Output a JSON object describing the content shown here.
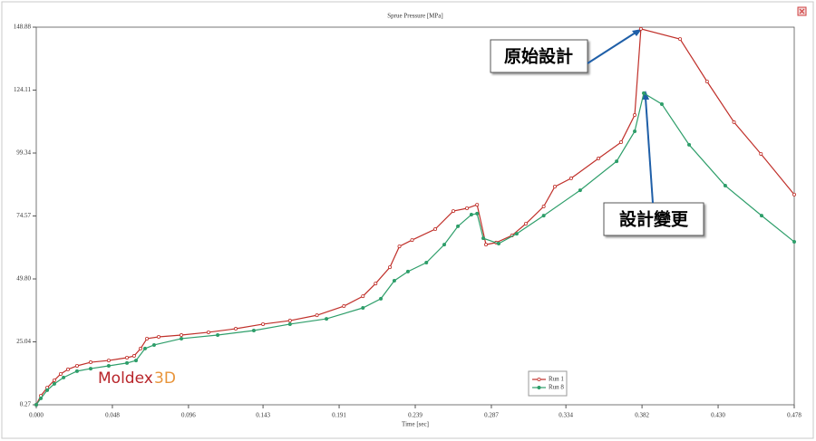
{
  "chart_data": {
    "type": "line",
    "title": "Sprue Pressure [MPa]",
    "x_label": "Time [sec]",
    "xlim": [
      0,
      0.478
    ],
    "ylim": [
      0.27,
      148.88
    ],
    "xticks": [
      {
        "value": 0,
        "label": "0.000"
      },
      0.048,
      0.096,
      0.143,
      0.191,
      0.239,
      0.287,
      0.334,
      0.382,
      {
        "value": 0.43,
        "label": "0.430"
      },
      0.478
    ],
    "yticks": [
      0.27,
      25.04,
      {
        "value": 49.8,
        "label": "49.80"
      },
      74.57,
      99.34,
      124.11,
      148.88
    ],
    "series": [
      {
        "name": "Run 1",
        "color": "#c0302a",
        "x": [
          0,
          0.0029,
          0.0069,
          0.0114,
          0.0154,
          0.02,
          0.0257,
          0.0343,
          0.0457,
          0.0572,
          0.0617,
          0.0658,
          0.0698,
          0.0772,
          0.0915,
          0.1086,
          0.1258,
          0.143,
          0.16,
          0.177,
          0.194,
          0.206,
          0.214,
          0.223,
          0.229,
          0.237,
          0.2516,
          0.263,
          0.2716,
          0.278,
          0.2836,
          0.29,
          0.3,
          0.3087,
          0.32,
          0.327,
          0.3373,
          0.3545,
          0.3688,
          0.3774,
          0.3813,
          0.406,
          0.423,
          0.44,
          0.457,
          0.478
        ],
        "values": [
          0.27,
          3.83,
          7.0,
          9.9,
          12.4,
          14.2,
          15.6,
          17.0,
          17.7,
          18.8,
          19.5,
          22.4,
          26.3,
          27.0,
          27.7,
          28.8,
          30.2,
          32.0,
          33.4,
          35.5,
          39.1,
          43.0,
          48.0,
          54.4,
          62.6,
          65.1,
          69.4,
          76.5,
          77.6,
          79.0,
          63.3,
          64.1,
          66.9,
          71.5,
          78.3,
          86.1,
          89.4,
          97.2,
          103.6,
          114.3,
          148.2,
          144.2,
          127.5,
          111.5,
          99.0,
          83.0
        ]
      },
      {
        "name": "Run 8",
        "color": "#2e9e6a",
        "x": [
          0,
          0.0029,
          0.0069,
          0.0114,
          0.0172,
          0.0257,
          0.0343,
          0.0457,
          0.0572,
          0.0629,
          0.0686,
          0.0743,
          0.0915,
          0.1144,
          0.1372,
          0.16,
          0.183,
          0.206,
          0.2173,
          0.2258,
          0.2344,
          0.246,
          0.2573,
          0.2659,
          0.2744,
          0.278,
          0.2819,
          0.2916,
          0.303,
          0.32,
          0.343,
          0.366,
          0.3774,
          0.3831,
          0.3945,
          0.4117,
          0.4345,
          0.4574,
          0.478
        ],
        "values": [
          0.27,
          2.8,
          6.0,
          8.5,
          11.0,
          13.5,
          14.5,
          15.6,
          16.7,
          17.7,
          22.4,
          23.8,
          26.3,
          27.7,
          29.5,
          32.0,
          34.1,
          38.4,
          42.0,
          49.1,
          52.7,
          56.2,
          63.3,
          70.5,
          75.1,
          75.5,
          65.8,
          63.7,
          67.6,
          74.7,
          84.7,
          96.1,
          107.9,
          122.9,
          118.6,
          102.6,
          86.5,
          74.7,
          64.4
        ]
      }
    ],
    "annotations": [
      "原始設計",
      "設計變更"
    ],
    "logo": [
      "Moldex",
      "3D"
    ]
  }
}
